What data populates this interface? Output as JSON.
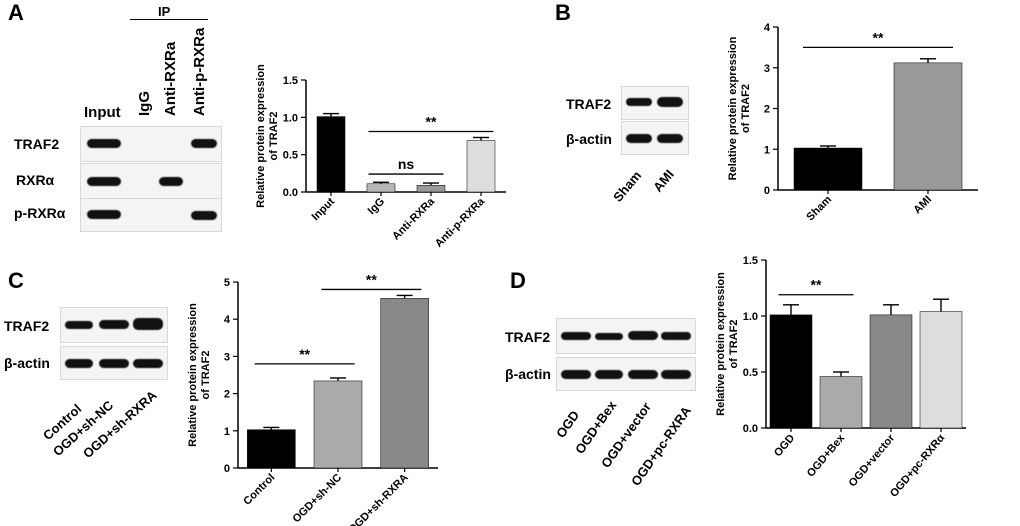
{
  "panels": {
    "A": {
      "letter": "A",
      "ip_label": "IP",
      "lanes": [
        "Input",
        "IgG",
        "Anti-RXRa",
        "Anti-p-RXRa"
      ],
      "rows": [
        {
          "label": "TRAF2",
          "bands": [
            0.9,
            0.0,
            0.0,
            0.85
          ]
        },
        {
          "label": "RXRα",
          "bands": [
            0.9,
            0.0,
            0.85,
            0.0
          ]
        },
        {
          "label": "p-RXRα",
          "bands": [
            0.9,
            0.05,
            0.0,
            0.85
          ]
        }
      ]
    },
    "B": {
      "letter": "B",
      "lanes": [
        "Sham",
        "AMI"
      ],
      "rows": [
        {
          "label": "TRAF2",
          "bands": [
            0.75,
            1.0
          ]
        },
        {
          "label": "β-actin",
          "bands": [
            0.9,
            0.9
          ]
        }
      ]
    },
    "C": {
      "letter": "C",
      "lanes": [
        "Control",
        "OGD+sh-NC",
        "OGD+sh-RXRA"
      ],
      "rows": [
        {
          "label": "TRAF2",
          "bands": [
            0.7,
            0.85,
            1.0
          ]
        },
        {
          "label": "β-actin",
          "bands": [
            0.9,
            0.9,
            0.9
          ]
        }
      ]
    },
    "D": {
      "letter": "D",
      "lanes": [
        "OGD",
        "OGD+Bex",
        "OGD+vector",
        "OGD+pc-RXRA"
      ],
      "rows": [
        {
          "label": "TRAF2",
          "bands": [
            0.85,
            0.6,
            0.9,
            0.85
          ]
        },
        {
          "label": "β-actin",
          "bands": [
            0.9,
            0.9,
            0.9,
            0.9
          ]
        }
      ]
    }
  },
  "chart_data": [
    {
      "id": "A",
      "type": "bar",
      "ylabel": [
        "Relative protein expression",
        "of TRAF2"
      ],
      "ylim": [
        0,
        1.5
      ],
      "yticks": [
        "0.0",
        "0.5",
        "1.0",
        "1.5"
      ],
      "yticks_values": [
        0,
        0.5,
        1.0,
        1.5
      ],
      "categories": [
        "Input",
        "IgG",
        "Anti-RXRa",
        "Anti-p-RXRa"
      ],
      "values": [
        1.01,
        0.11,
        0.09,
        0.69
      ],
      "errors": [
        0.04,
        0.02,
        0.03,
        0.04
      ],
      "colors": [
        "#000000",
        "#b7b7b7",
        "#999999",
        "#dddddd"
      ],
      "annotations": [
        {
          "text": "**",
          "from": 1,
          "to": 3,
          "level": 0.81
        },
        {
          "text": "ns",
          "from": 1,
          "to": 2,
          "level": 0.24
        }
      ]
    },
    {
      "id": "B",
      "type": "bar",
      "ylabel": [
        "Relative protein expression",
        "of TRAF2"
      ],
      "ylim": [
        0,
        4
      ],
      "yticks": [
        "0",
        "1",
        "2",
        "3",
        "4"
      ],
      "yticks_values": [
        0,
        1,
        2,
        3,
        4
      ],
      "categories": [
        "Sham",
        "AMI"
      ],
      "values": [
        1.03,
        3.12
      ],
      "errors": [
        0.05,
        0.1
      ],
      "colors": [
        "#000000",
        "#999999"
      ],
      "annotations": [
        {
          "text": "**",
          "from": 0,
          "to": 1,
          "level": 3.5
        }
      ]
    },
    {
      "id": "C",
      "type": "bar",
      "ylabel": [
        "Relative protein expression",
        "of TRAF2"
      ],
      "ylim": [
        0,
        5
      ],
      "yticks": [
        "0",
        "1",
        "2",
        "3",
        "4",
        "5"
      ],
      "yticks_values": [
        0,
        1,
        2,
        3,
        4,
        5
      ],
      "categories": [
        "Control",
        "OGD+sh-NC",
        "OGD+sh-RXRA"
      ],
      "values": [
        1.03,
        2.34,
        4.56
      ],
      "errors": [
        0.06,
        0.08,
        0.08
      ],
      "colors": [
        "#000000",
        "#aaaaaa",
        "#888888"
      ],
      "annotations": [
        {
          "text": "**",
          "from": 0,
          "to": 1,
          "level": 2.8
        },
        {
          "text": "**",
          "from": 1,
          "to": 2,
          "level": 4.8
        }
      ]
    },
    {
      "id": "D",
      "type": "bar",
      "ylabel": [
        "Relative protein expression",
        "of TRAF2"
      ],
      "ylim": [
        0,
        1.5
      ],
      "yticks": [
        "0.0",
        "0.5",
        "1.0",
        "1.5"
      ],
      "yticks_values": [
        0,
        0.5,
        1.0,
        1.5
      ],
      "categories": [
        "OGD",
        "OGD+Bex",
        "OGD+vector",
        "OGD+pc-RXRα"
      ],
      "values": [
        1.01,
        0.46,
        1.01,
        1.04
      ],
      "errors": [
        0.09,
        0.04,
        0.09,
        0.11
      ],
      "colors": [
        "#000000",
        "#aaaaaa",
        "#888888",
        "#dddddd"
      ],
      "annotations": [
        {
          "text": "**",
          "from": 0,
          "to": 1,
          "level": 1.19
        }
      ]
    }
  ]
}
